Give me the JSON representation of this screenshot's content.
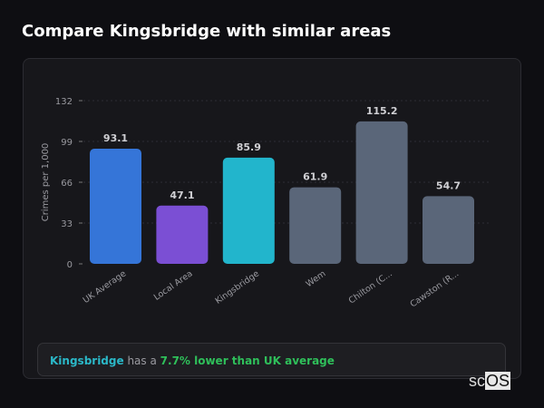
{
  "header": {
    "title": "Compare Kingsbridge with similar areas"
  },
  "chart_data": {
    "type": "bar",
    "categories": [
      "UK Average",
      "Local Area",
      "Kingsbridge",
      "Wem",
      "Chilton (C...",
      "Cawston (R..."
    ],
    "values": [
      93.1,
      47.1,
      85.9,
      61.9,
      115.2,
      54.7
    ],
    "colors": [
      "#3575d8",
      "#7b4fd4",
      "#22b5cc",
      "#5a6679",
      "#5a6679",
      "#5a6679"
    ],
    "ylabel": "Crimes per 1,000",
    "xlabel": "",
    "ylim": [
      0,
      132
    ],
    "yticks": [
      0,
      33,
      66,
      99,
      132
    ],
    "grid": true
  },
  "footer": {
    "area": "Kingsbridge",
    "text": " has a ",
    "comparison": "7.7% lower than UK average"
  },
  "logo": {
    "text1": "sc",
    "text2": "OS"
  }
}
